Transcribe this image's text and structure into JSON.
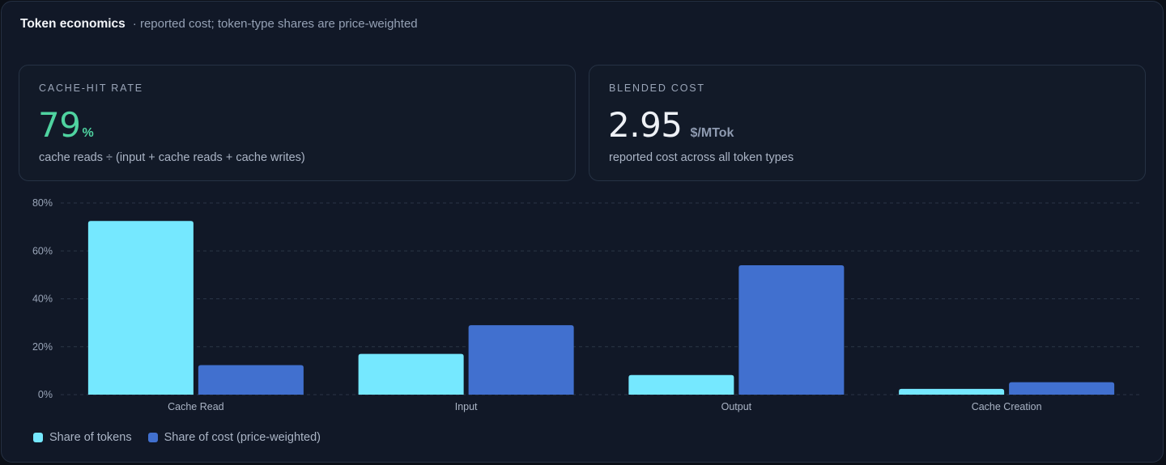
{
  "header": {
    "title": "Token economics",
    "subtitle": "· reported cost; token-type shares are price-weighted"
  },
  "stats": {
    "cache_hit": {
      "label": "CACHE-HIT RATE",
      "value": "79",
      "unit": "%",
      "description": "cache reads ÷ (input + cache reads + cache writes)",
      "color": "#4fd3a0"
    },
    "blended_cost": {
      "label": "BLENDED COST",
      "value": "2.95",
      "unit": "$/MTok",
      "description": "reported cost across all token types"
    }
  },
  "chart_data": {
    "type": "bar",
    "categories": [
      "Cache Read",
      "Input",
      "Output",
      "Cache Creation"
    ],
    "series": [
      {
        "name": "Share of tokens",
        "values": [
          72.5,
          17,
          8.2,
          2.4
        ],
        "color": "#75e8ff"
      },
      {
        "name": "Share of cost (price-weighted)",
        "values": [
          12.3,
          29,
          54,
          5.2
        ],
        "color": "#4170cf"
      }
    ],
    "y_ticks": [
      "0%",
      "20%",
      "40%",
      "60%",
      "80%"
    ],
    "ylim": [
      0,
      80
    ],
    "grid": true,
    "legend_position": "bottom-left"
  }
}
